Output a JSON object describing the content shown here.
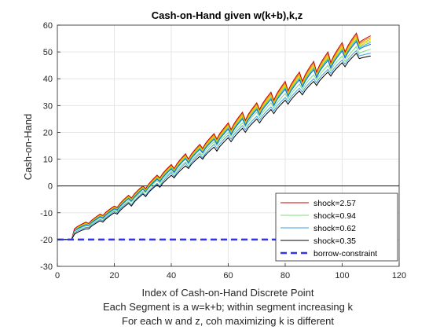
{
  "chart_data": {
    "type": "line",
    "title": "Cash-on-Hand given w(k+b),k,z",
    "xlabel": "Index of Cash-on-Hand Discrete Point",
    "xlabel_lines": [
      "Index of Cash-on-Hand Discrete Point",
      "Each Segment is a w=k+b; within segment increasing k",
      "For each w and z, coh maximizing k is different"
    ],
    "ylabel": "Cash-on-Hand",
    "xlim": [
      0,
      120
    ],
    "ylim": [
      -30,
      60
    ],
    "xticks": [
      0,
      20,
      40,
      60,
      80,
      100,
      120
    ],
    "yticks": [
      -30,
      -20,
      -10,
      0,
      10,
      20,
      30,
      40,
      50,
      60
    ],
    "grid": true,
    "zero_line": true,
    "legend_position": "bottom-right",
    "segments": {
      "first_segment_points": 5,
      "segment_points": 5,
      "count": 22,
      "borrow_limit": -20
    },
    "series": [
      {
        "name": "shock=2.57",
        "color": "#cc0000",
        "start_values": [
          -20,
          -16.0,
          -14.0,
          -11.0,
          -8.0,
          -4.5,
          -1.0,
          3.0,
          6.5,
          10.0,
          14.0,
          17.5,
          21.0,
          24.5,
          28.5,
          32.0,
          35.5,
          39.0,
          42.5,
          46.0,
          50.0,
          53.5
        ],
        "end_values": [
          -20,
          -13.5,
          -10.5,
          -7.5,
          -3.5,
          0.0,
          4.0,
          8.0,
          12.0,
          15.5,
          19.5,
          23.5,
          27.5,
          31.0,
          35.0,
          39.0,
          42.5,
          46.5,
          50.0,
          53.5,
          57.0,
          56.0
        ]
      },
      {
        "name": "shock=0.94",
        "color": "#7be07b",
        "start_values": [
          -20,
          -17.0,
          -15.0,
          -12.5,
          -9.5,
          -6.0,
          -2.5,
          1.0,
          4.5,
          8.0,
          11.5,
          15.0,
          18.5,
          22.0,
          25.5,
          29.0,
          32.5,
          36.0,
          39.5,
          43.0,
          46.5,
          49.5
        ],
        "end_values": [
          -20,
          -15.0,
          -12.0,
          -9.0,
          -5.5,
          -2.0,
          2.0,
          5.5,
          9.0,
          12.5,
          16.5,
          20.0,
          23.5,
          27.5,
          31.0,
          34.5,
          38.0,
          41.5,
          45.0,
          48.5,
          52.0,
          51.0
        ]
      },
      {
        "name": "shock=0.62",
        "color": "#3ba0e0",
        "start_values": [
          -20,
          -17.5,
          -15.5,
          -13.0,
          -10.0,
          -7.0,
          -3.5,
          0.0,
          3.5,
          7.0,
          10.5,
          14.0,
          17.5,
          21.0,
          24.5,
          28.0,
          31.5,
          35.0,
          38.5,
          42.0,
          45.5,
          48.5
        ],
        "end_values": [
          -20,
          -15.5,
          -12.5,
          -9.5,
          -6.0,
          -2.5,
          1.0,
          5.0,
          8.5,
          12.0,
          15.5,
          19.0,
          22.5,
          26.0,
          29.5,
          33.0,
          36.5,
          40.0,
          43.5,
          47.0,
          50.5,
          49.5
        ]
      },
      {
        "name": "shock=0.35",
        "color": "#000000",
        "start_values": [
          -20,
          -18.0,
          -16.0,
          -13.5,
          -10.5,
          -7.5,
          -4.0,
          -0.5,
          3.0,
          6.5,
          10.0,
          13.0,
          16.5,
          20.0,
          23.5,
          27.0,
          30.5,
          34.0,
          37.5,
          41.0,
          44.5,
          47.5
        ],
        "end_values": [
          -20,
          -16.0,
          -13.0,
          -10.0,
          -6.5,
          -3.0,
          0.5,
          4.0,
          7.5,
          11.0,
          14.5,
          18.0,
          21.5,
          25.0,
          28.5,
          32.0,
          35.5,
          39.0,
          42.5,
          46.0,
          49.5,
          48.5
        ]
      },
      {
        "name": "borrow-constraint",
        "color": "#3333ee",
        "dashed": true,
        "x": [
          0,
          113
        ],
        "values": [
          -20,
          -20
        ]
      }
    ],
    "extra_band_colors": [
      "#e08000",
      "#e8c000",
      "#c8d800",
      "#30c0b0",
      "#1060e0"
    ]
  }
}
